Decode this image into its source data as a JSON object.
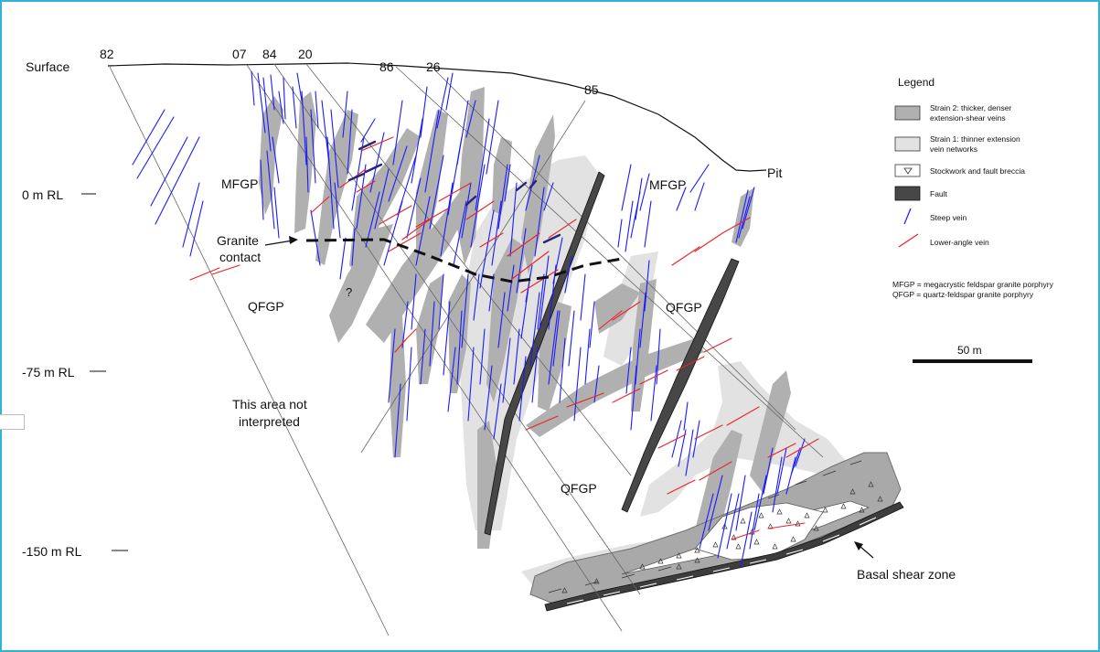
{
  "drill_holes": [
    "82",
    "07",
    "84",
    "20",
    "86",
    "26",
    "85"
  ],
  "depth_labels": {
    "surface": "Surface",
    "rl_0": "0 m RL",
    "rl_75": "-75 m RL",
    "rl_150": "-150 m RL"
  },
  "annotations": {
    "pit": "Pit",
    "mfgp_left": "MFGP",
    "mfgp_right": "MFGP",
    "qfgp_left": "QFGP",
    "qfgp_right": "QFGP",
    "qfgp_bottom": "QFGP",
    "question": "?",
    "granite_contact_line1": "Granite",
    "granite_contact_line2": "contact",
    "not_interpreted_line1": "This area not",
    "not_interpreted_line2": "interpreted",
    "basal_shear_zone": "Basal shear zone"
  },
  "legend": {
    "title": "Legend",
    "items": [
      {
        "key": "strain2",
        "lines": [
          "Strain 2: thicker, denser",
          "extension-shear veins"
        ],
        "color": "#b0b0b0"
      },
      {
        "key": "strain1",
        "lines": [
          "Strain 1: thinner extension",
          "vein networks"
        ],
        "color": "#e2e2e2"
      },
      {
        "key": "stockwork",
        "lines": [
          "Stockwork and fault breccia"
        ],
        "color": "#ffffff"
      },
      {
        "key": "fault",
        "lines": [
          "Fault"
        ],
        "color": "#474747"
      },
      {
        "key": "steep",
        "lines": [
          "Steep vein"
        ],
        "color": "#1a1aff"
      },
      {
        "key": "lowangle",
        "lines": [
          "Lower-angle vein"
        ],
        "color": "#e8232a"
      }
    ],
    "abbrev_mfgp": "MFGP = megacrystic feldspar granite porphyry",
    "abbrev_qfgp": "QFGP = quartz-feldspar granite porphyry",
    "scale_label": "50 m"
  },
  "colors": {
    "frame": "#2fb3d6",
    "strain2": "#b0b0b0",
    "strain1": "#e2e2e2",
    "fault": "#474747",
    "steep_vein": "#1a1aff",
    "low_angle_vein": "#e8232a"
  }
}
